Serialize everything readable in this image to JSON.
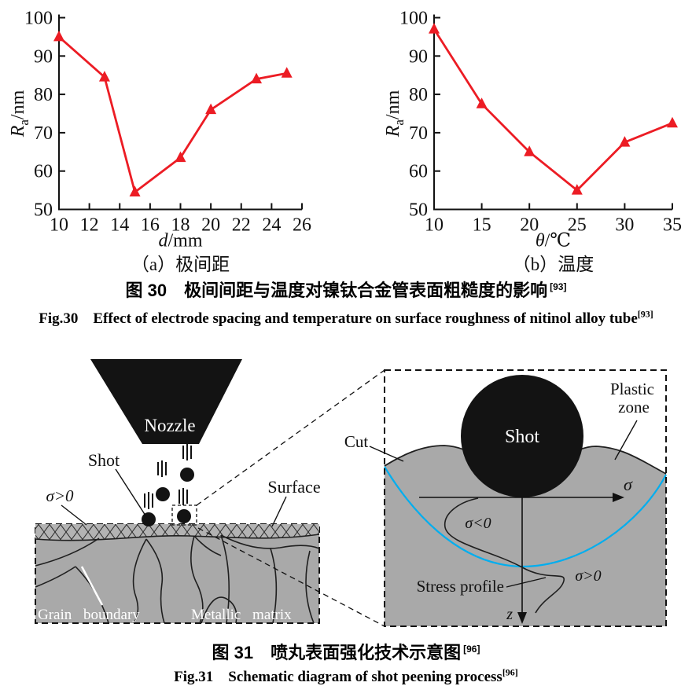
{
  "figure30": {
    "subcaption_a": "（a）极间距",
    "subcaption_b": "（b）温度",
    "caption_zh": "图 30　极间间距与温度对镍钛合金管表面粗糙度的影响",
    "caption_zh_ref": "[93]",
    "caption_en": "Fig.30　Effect of electrode spacing and temperature on surface roughness of nitinol alloy tube",
    "caption_en_ref": "[93]"
  },
  "figure31": {
    "caption_zh": "图 31　喷丸表面强化技术示意图",
    "caption_zh_ref": "[96]",
    "caption_en": "Fig.31　Schematic diagram of shot peening process",
    "caption_en_ref": "[96]"
  },
  "chart_data": [
    {
      "type": "line",
      "panel": "a",
      "title": "",
      "x": [
        10,
        13,
        15,
        18,
        20,
        23,
        25
      ],
      "y": [
        95,
        84.5,
        54.5,
        63.5,
        76,
        84,
        85.5
      ],
      "xlabel": "d/mm",
      "xlabel_var": "d",
      "xlabel_unit": "/mm",
      "ylabel": "Ra/nm",
      "ylabel_var": "R",
      "ylabel_sub": "a",
      "ylabel_unit": "/nm",
      "xlim": [
        10,
        26
      ],
      "xticks": [
        10,
        12,
        14,
        16,
        18,
        20,
        22,
        24,
        26
      ],
      "ylim": [
        50,
        100
      ],
      "yticks": [
        50,
        60,
        70,
        80,
        90,
        100
      ],
      "line_color": "#ec1c24",
      "marker": "triangle-up",
      "grid": false,
      "legend": null
    },
    {
      "type": "line",
      "panel": "b",
      "title": "",
      "x": [
        10,
        15,
        20,
        25,
        30,
        35
      ],
      "y": [
        97,
        77.5,
        65,
        55,
        67.5,
        72.5
      ],
      "xlabel": "θ/℃",
      "xlabel_var": "θ",
      "xlabel_unit": "/℃",
      "ylabel": "Ra/nm",
      "ylabel_var": "R",
      "ylabel_sub": "a",
      "ylabel_unit": "/nm",
      "xlim": [
        10,
        35
      ],
      "xticks": [
        10,
        15,
        20,
        25,
        30,
        35
      ],
      "ylim": [
        50,
        100
      ],
      "yticks": [
        50,
        60,
        70,
        80,
        90,
        100
      ],
      "line_color": "#ec1c24",
      "marker": "triangle-up",
      "grid": false,
      "legend": null
    }
  ],
  "schematic": {
    "labels": {
      "nozzle": "Nozzle",
      "shot": "Shot",
      "sigma_gt0": "σ>0",
      "surface": "Surface",
      "grain_boundary": "Grain boundary",
      "metallic_matrix": "Metallic matrix",
      "inset_shot": "Shot",
      "plastic_line1": "Plastic",
      "plastic_line2": "zone",
      "cut": "Cut",
      "sigma": "σ",
      "sigma_lt0": "σ<0",
      "inset_sigma_gt0": "σ>0",
      "stress_profile": "Stress profile",
      "z_axis": "z"
    },
    "colors": {
      "material": "#a9a9a9",
      "hatch_band": "#b3b3b3",
      "shot": "#131313",
      "plastic_boundary": "#00aeef",
      "line_red": "#ec1c24"
    }
  }
}
